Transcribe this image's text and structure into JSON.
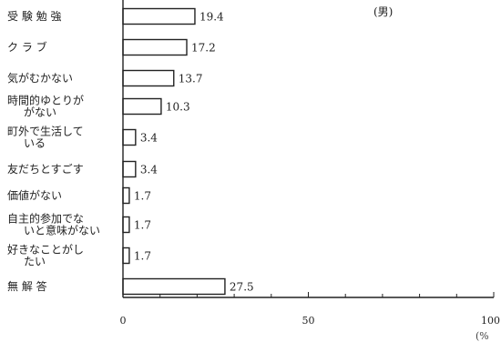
{
  "chart_data": {
    "type": "bar",
    "orientation": "horizontal",
    "annotation": "(男)",
    "unit": "(%",
    "xlim": [
      0,
      100
    ],
    "xticks": [
      0,
      50,
      100
    ],
    "xtick_labels": [
      "0",
      "50",
      "100"
    ],
    "grid": false,
    "legend": "none",
    "bar_fill": "#ffffff",
    "bar_stroke": "#222222",
    "categories": [
      [
        "受 験 勉 強"
      ],
      [
        "ク ラ ブ"
      ],
      [
        "気がむかない"
      ],
      [
        "時間的ゆとりが",
        "がない"
      ],
      [
        "町外で生活して",
        "いる"
      ],
      [
        "友だちとすごす"
      ],
      [
        "価値がない"
      ],
      [
        "自主的参加でな",
        "いと意味がない"
      ],
      [
        "好きなことがし",
        "たい"
      ],
      [
        "無 解 答"
      ]
    ],
    "values": [
      19.4,
      17.2,
      13.7,
      10.3,
      3.4,
      3.4,
      1.7,
      1.7,
      1.7,
      27.5
    ],
    "value_labels": [
      "19.4",
      "17.2",
      "13.7",
      "10.3",
      "3.4",
      "3.4",
      "1.7",
      "1.7",
      "1.7",
      "27.5"
    ]
  }
}
